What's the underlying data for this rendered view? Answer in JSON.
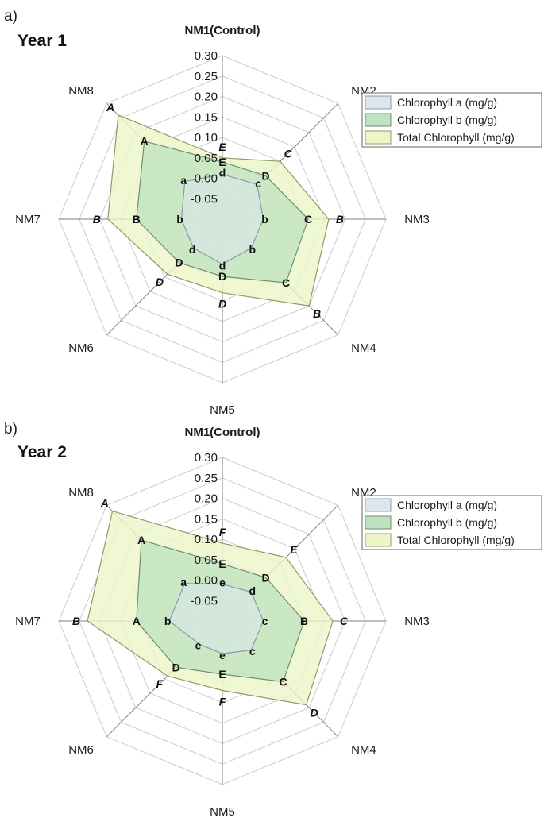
{
  "colors": {
    "chl_a": "#dde6ef",
    "chl_b": "#bfe3c0",
    "total": "#ecf5c8",
    "grid": "#cccccc",
    "axis": "#7f7f7f"
  },
  "chart_data": [
    {
      "type": "radar",
      "panel": "a)",
      "title": "Year 1",
      "categories": [
        "NM1(Control)",
        "NM2",
        "NM3",
        "NM4",
        "NM5",
        "NM6",
        "NM7",
        "NM8"
      ],
      "r_ticks": [
        "-0.05",
        "0.00",
        "0.05",
        "0.10",
        "0.15",
        "0.20",
        "0.25",
        "0.30"
      ],
      "rlim": [
        -0.1,
        0.3
      ],
      "grid": true,
      "legend_position": "top-right",
      "series": [
        {
          "name": "Chlorophyll a (mg/g)",
          "values": [
            0.01,
            0.02,
            0.0,
            0.0,
            0.01,
            0.0,
            0.0,
            0.03
          ],
          "letters": [
            "d",
            "c",
            "b",
            "b",
            "d",
            "d",
            "b",
            "a"
          ]
        },
        {
          "name": "Chlorophyll b (mg/g)",
          "values": [
            0.04,
            0.05,
            0.11,
            0.12,
            0.04,
            0.05,
            0.11,
            0.17
          ],
          "letters": [
            "E",
            "D",
            "C",
            "C",
            "D",
            "D",
            "B",
            "A"
          ]
        },
        {
          "name": "Total Chlorophyll (mg/g)",
          "values": [
            0.05,
            0.1,
            0.16,
            0.2,
            0.08,
            0.09,
            0.18,
            0.26
          ],
          "letters": [
            "E",
            "C",
            "B",
            "B",
            "D",
            "D",
            "B",
            "A"
          ]
        }
      ]
    },
    {
      "type": "radar",
      "panel": "b)",
      "title": "Year 2",
      "categories": [
        "NM1(Control)",
        "NM2",
        "NM3",
        "NM4",
        "NM5",
        "NM6",
        "NM7",
        "NM8"
      ],
      "r_ticks": [
        "-0.05",
        "0.00",
        "0.05",
        "0.10",
        "0.15",
        "0.20",
        "0.25",
        "0.30"
      ],
      "rlim": [
        -0.1,
        0.3
      ],
      "grid": true,
      "legend_position": "top-right",
      "series": [
        {
          "name": "Chlorophyll a (mg/g)",
          "values": [
            -0.01,
            0.0,
            0.0,
            0.0,
            -0.02,
            -0.02,
            0.03,
            0.03
          ],
          "letters": [
            "e",
            "d",
            "c",
            "c",
            "e",
            "e",
            "b",
            "a"
          ]
        },
        {
          "name": "Chlorophyll b (mg/g)",
          "values": [
            0.04,
            0.05,
            0.1,
            0.11,
            0.03,
            0.06,
            0.11,
            0.18
          ],
          "letters": [
            "E",
            "D",
            "B",
            "C",
            "E",
            "D",
            "A",
            "A"
          ]
        },
        {
          "name": "Total Chlorophyll (mg/g)",
          "values": [
            0.09,
            0.12,
            0.17,
            0.19,
            0.07,
            0.09,
            0.23,
            0.28
          ],
          "letters": [
            "F",
            "E",
            "C",
            "D",
            "F",
            "F",
            "B",
            "A"
          ]
        }
      ]
    }
  ]
}
